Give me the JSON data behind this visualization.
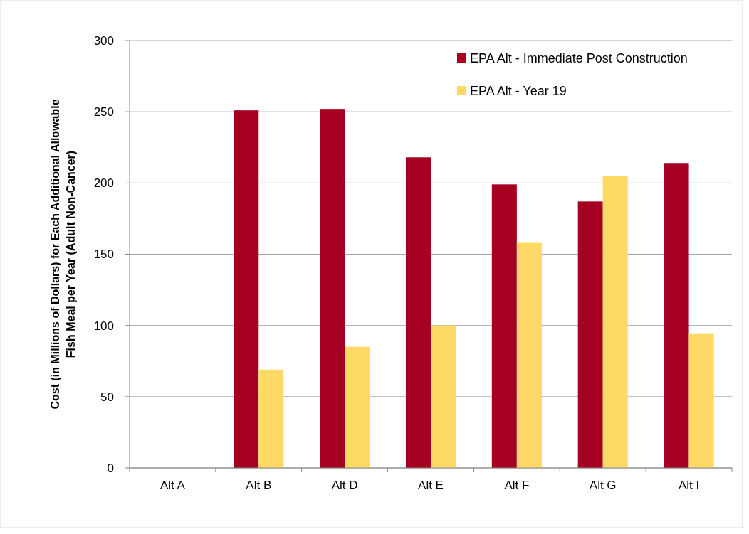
{
  "chart_data": {
    "type": "bar",
    "ylabel": "Cost (in Millions of Dollars) for Each Additional Allowable Fish Meal per Year (Adult Non-Cancer)",
    "categories": [
      "Alt A",
      "Alt B",
      "Alt D",
      "Alt E",
      "Alt F",
      "Alt G",
      "Alt I"
    ],
    "series": [
      {
        "name": "EPA Alt - Immediate Post Construction",
        "color": "#a50021",
        "values": [
          null,
          251,
          252,
          218,
          199,
          187,
          214
        ]
      },
      {
        "name": "EPA Alt - Year 19",
        "color": "#ffd966",
        "values": [
          null,
          69,
          85,
          100,
          158,
          205,
          94
        ]
      }
    ],
    "ylim": [
      0,
      300
    ],
    "yticks": [
      0,
      50,
      100,
      150,
      200,
      250,
      300
    ],
    "grid": "y",
    "legend": "top right"
  }
}
